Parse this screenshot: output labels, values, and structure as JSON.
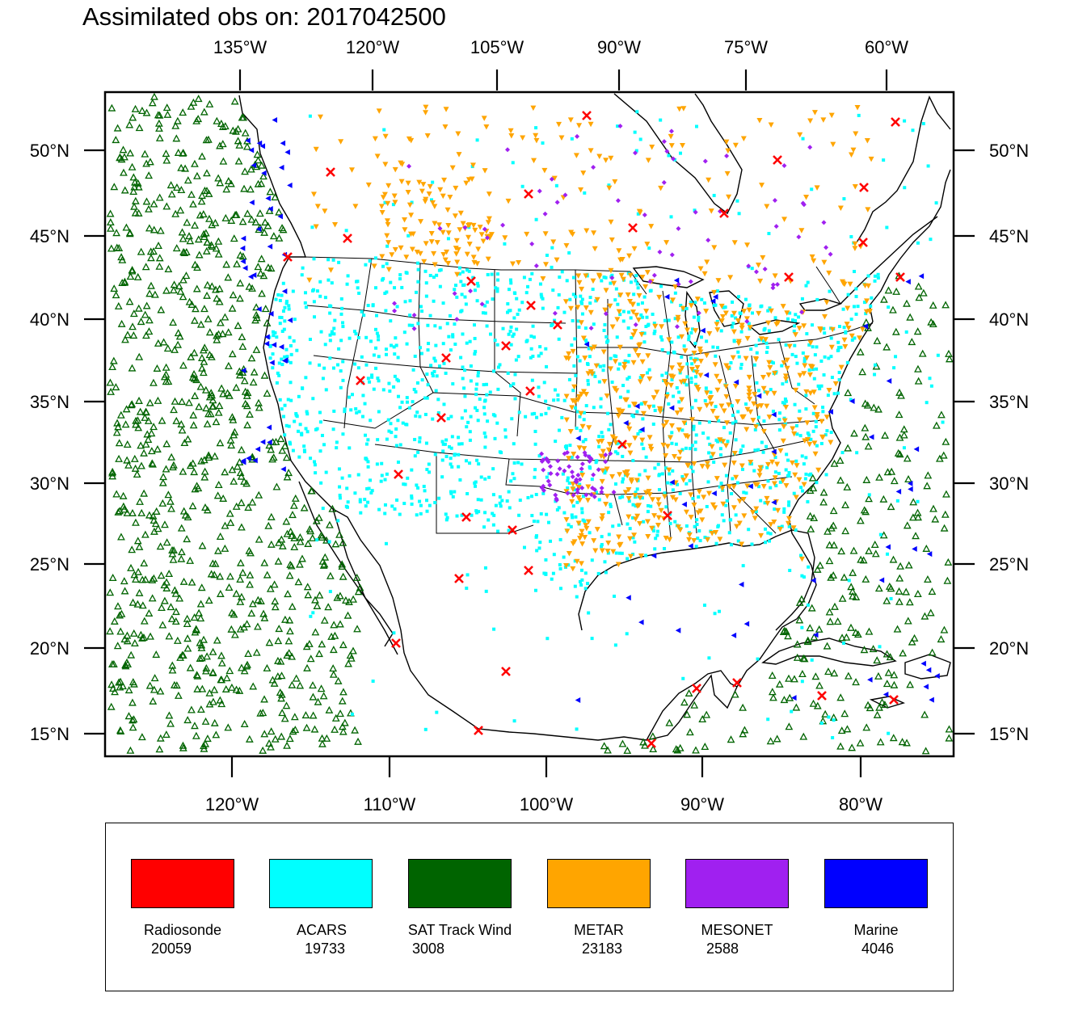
{
  "title": "Assimilated obs on: 2017042500",
  "axes": {
    "top_lon_labels": [
      "135°W",
      "120°W",
      "105°W",
      "90°W",
      "75°W",
      "60°W"
    ],
    "bottom_lon_labels": [
      "120°W",
      "110°W",
      "100°W",
      "90°W",
      "80°W"
    ],
    "lat_labels": [
      "50°N",
      "45°N",
      "40°N",
      "35°N",
      "30°N",
      "25°N",
      "20°N",
      "15°N"
    ]
  },
  "legend": [
    {
      "name": "Radiosonde",
      "count": "20059",
      "color": "#ff0000",
      "marker": "x"
    },
    {
      "name": "ACARS",
      "count": "19733",
      "color": "#00ffff",
      "marker": "square"
    },
    {
      "name": "SAT Track Wind",
      "count": "3008",
      "color": "#006400",
      "marker": "triangle-open"
    },
    {
      "name": "METAR",
      "count": "23183",
      "color": "#ffa500",
      "marker": "triangle-down"
    },
    {
      "name": "MESONET",
      "count": "2588",
      "color": "#a020f0",
      "marker": "diamond"
    },
    {
      "name": "Marine",
      "count": "4046",
      "color": "#0000ff",
      "marker": "triangle-left"
    }
  ]
}
